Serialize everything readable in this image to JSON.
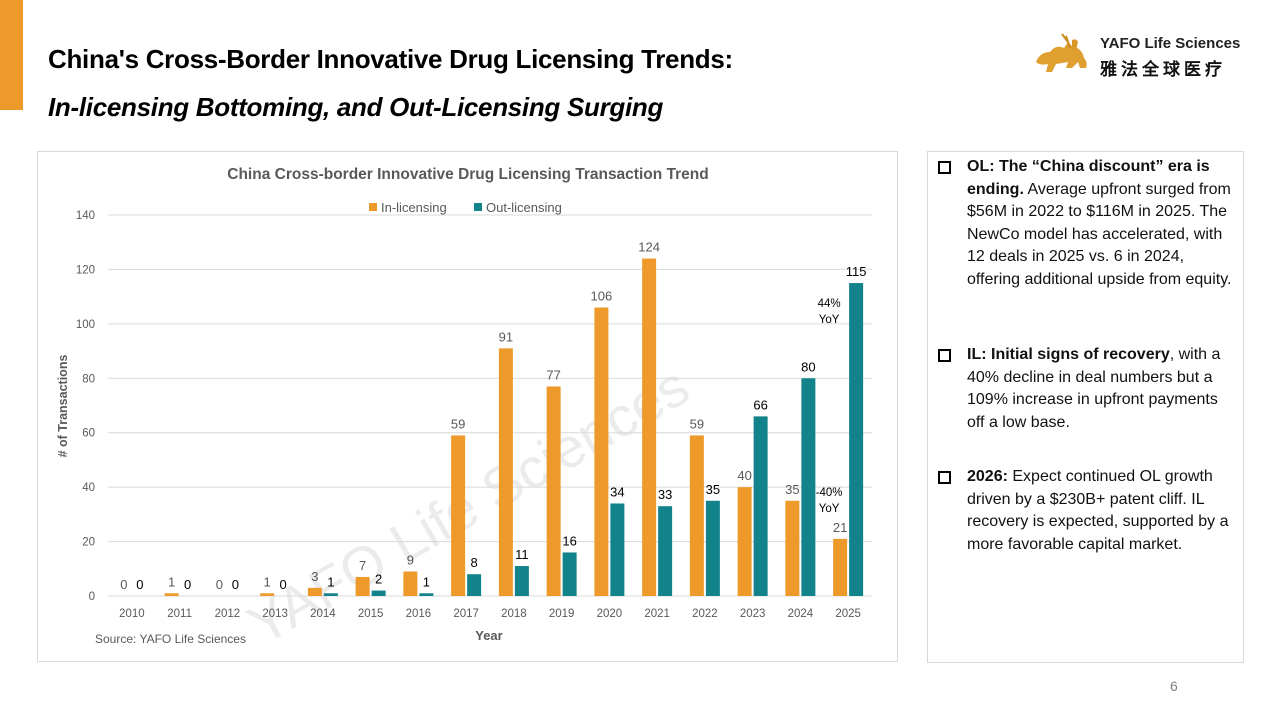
{
  "header": {
    "title_line1": "China's Cross-Border Innovative Drug Licensing Trends:",
    "title_line2": "In-licensing Bottoming, and Out-Licensing Surging",
    "accent_color": "#ED9A2B"
  },
  "logo": {
    "icon": "lion-icon",
    "name_en": "YAFO Life Sciences",
    "name_cn": "雅法全球医疗"
  },
  "chart_data": {
    "type": "bar",
    "title": "China Cross-border Innovative Drug Licensing Transaction Trend",
    "xlabel": "Year",
    "ylabel": "# of Transactions",
    "ylim": [
      0,
      140
    ],
    "yticks": [
      0,
      20,
      40,
      60,
      80,
      100,
      120,
      140
    ],
    "grid": true,
    "legend_position": "top-center",
    "categories": [
      "2010",
      "2011",
      "2012",
      "2013",
      "2014",
      "2015",
      "2016",
      "2017",
      "2018",
      "2019",
      "2020",
      "2021",
      "2022",
      "2023",
      "2024",
      "2025"
    ],
    "series": [
      {
        "name": "In-licensing",
        "color": "#ED9A2B",
        "label_color": "#595959",
        "values": [
          0,
          1,
          0,
          1,
          3,
          7,
          9,
          59,
          91,
          77,
          106,
          124,
          59,
          40,
          35,
          21
        ]
      },
      {
        "name": "Out-licensing",
        "color": "#12838A",
        "label_color": "#000000",
        "values": [
          0,
          0,
          0,
          0,
          1,
          2,
          1,
          8,
          11,
          16,
          34,
          33,
          35,
          66,
          80,
          115
        ]
      }
    ],
    "annotations": [
      {
        "text_line1": "44%",
        "text_line2": "YoY",
        "category": "2025",
        "series": "Out-licensing"
      },
      {
        "text_line1": "-40%",
        "text_line2": "YoY",
        "category": "2025",
        "series": "In-licensing"
      }
    ],
    "watermark": "YAFO Life Sciences",
    "source": "Source: YAFO Life Sciences"
  },
  "notes": [
    {
      "bold": "OL: The “China discount” era is ending.",
      "text": " Average upfront surged from $56M in 2022 to $116M in 2025. The NewCo model has accelerated, with 12 deals in 2025 vs. 6 in 2024, offering additional upside from equity."
    },
    {
      "bold": "IL: Initial signs of recovery",
      "text": ", with a 40% decline in deal numbers but a 109% increase in upfront payments off a low base."
    },
    {
      "bold": "2026:",
      "text": " Expect continued OL growth driven by a $230B+ patent cliff. IL recovery is expected, supported by a more favorable capital market."
    }
  ],
  "page_number": "6"
}
